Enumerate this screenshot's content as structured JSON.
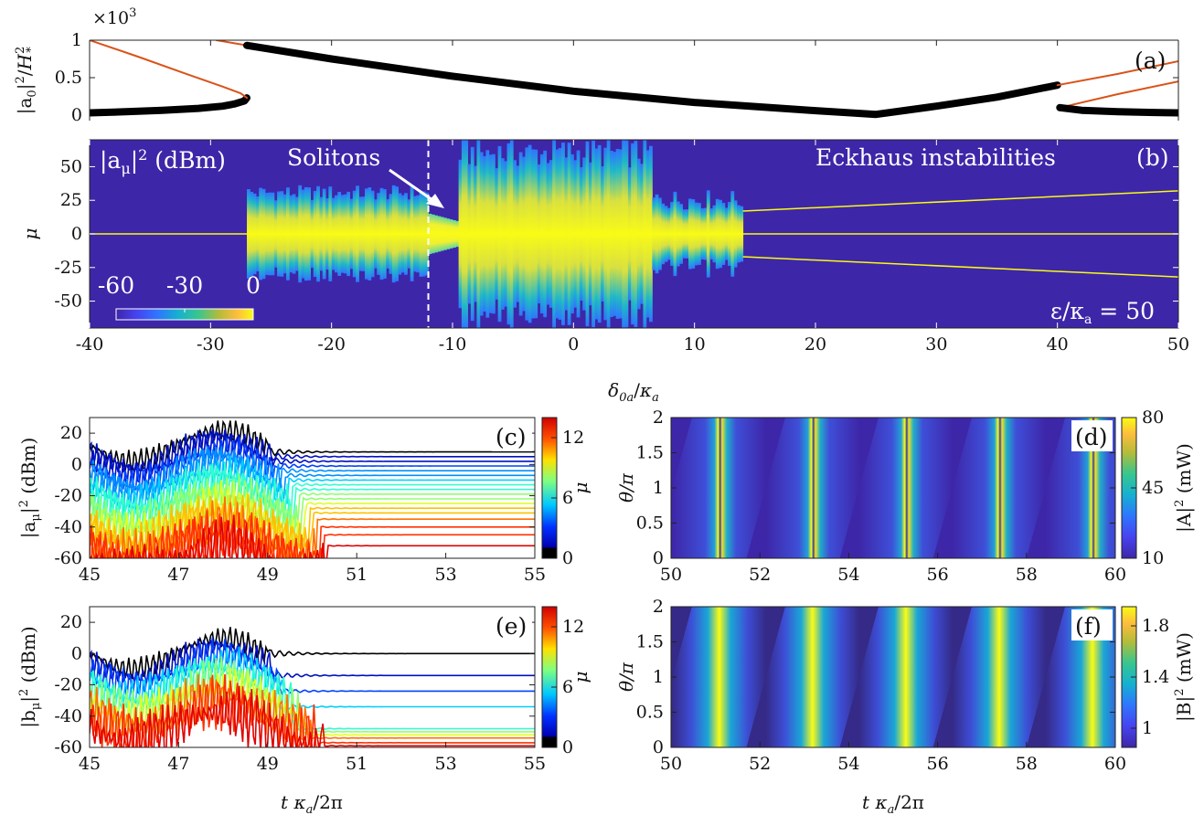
{
  "chart_data": [
    {
      "id": "a",
      "type": "line",
      "panel_label": "(a)",
      "ylabel": "|a0|²/H*²",
      "ylabel_parts": {
        "base": "|a",
        "sub": "0",
        "mid": "|",
        "sup": "2",
        "slash": "/",
        "script": "H",
        "sup2": "2",
        "sub2": "*"
      },
      "multiplier": "×10",
      "multiplier_exp": "3",
      "xlim": [
        -40,
        50
      ],
      "ylim": [
        0,
        1
      ],
      "ytick_labels": [
        "0",
        "0.5",
        "1"
      ],
      "ytick_values": [
        0,
        0.5,
        1
      ],
      "series": [
        {
          "style": "thick",
          "color": "#000000",
          "x": [
            -40,
            -37,
            -34,
            -31,
            -29,
            -28,
            -27.2,
            -27
          ],
          "y": [
            0.03,
            0.045,
            0.065,
            0.09,
            0.12,
            0.15,
            0.19,
            0.23
          ]
        },
        {
          "style": "thin",
          "color": "#d95319",
          "x": [
            -40,
            -36,
            -32,
            -29,
            -27.5,
            -27
          ],
          "y": [
            1.0,
            0.78,
            0.55,
            0.38,
            0.29,
            0.23
          ]
        },
        {
          "style": "thin",
          "color": "#d95319",
          "x": [
            -29.5,
            -27
          ],
          "y": [
            1.0,
            0.93
          ]
        },
        {
          "style": "thick",
          "color": "#000000",
          "x": [
            -27,
            -20,
            -10,
            0,
            10,
            20,
            25,
            30,
            35,
            40
          ],
          "y": [
            0.93,
            0.75,
            0.52,
            0.32,
            0.17,
            0.06,
            0.01,
            0.12,
            0.24,
            0.4
          ]
        },
        {
          "style": "thin",
          "color": "#d95319",
          "x": [
            40,
            45,
            50
          ],
          "y": [
            0.4,
            0.55,
            0.72
          ]
        },
        {
          "style": "thin",
          "color": "#d95319",
          "x": [
            40.2,
            45,
            50
          ],
          "y": [
            0.1,
            0.28,
            0.45
          ]
        },
        {
          "style": "thick",
          "color": "#000000",
          "x": [
            40.2,
            42,
            45,
            48,
            50
          ],
          "y": [
            0.1,
            0.065,
            0.045,
            0.035,
            0.03
          ]
        }
      ]
    },
    {
      "id": "b",
      "type": "heatmap",
      "panel_label": "(b)",
      "xlabel": "δ0a/κa",
      "xlabel_parts": {
        "base": "δ",
        "sub": "0a",
        "slash": "/",
        "base2": "κ",
        "sub2": "a"
      },
      "ylabel": "μ",
      "xlim": [
        -40,
        50
      ],
      "ylim": [
        -70,
        70
      ],
      "xtick_labels": [
        "-40",
        "-30",
        "-20",
        "-10",
        "0",
        "10",
        "20",
        "30",
        "40",
        "50"
      ],
      "xtick_values": [
        -40,
        -30,
        -20,
        -10,
        0,
        10,
        20,
        30,
        40,
        50
      ],
      "ytick_labels": [
        "-50",
        "-25",
        "0",
        "25",
        "50"
      ],
      "ytick_values": [
        -50,
        -25,
        0,
        25,
        50
      ],
      "quantity": "|aμ|² (dBm)",
      "quantity_parts": {
        "base": "|a",
        "sub": "μ",
        "mid": "|",
        "sup": "2",
        "unit": " (dBm)"
      },
      "colorbar_ticks": [
        "-60",
        "-30",
        "0"
      ],
      "colorbar_range": [
        -60,
        0
      ],
      "annotations": {
        "solitons": "Solitons",
        "eckhaus": "Eckhaus instabilities"
      },
      "epsilon_label": "ε/κa = 50",
      "epsilon_parts": {
        "base": "ε/κ",
        "sub": "a",
        "rest": " = 50"
      },
      "dashed_line_x": -12,
      "regions": [
        {
          "from": -27,
          "to": -12,
          "mu_extent": 33,
          "state": "chaotic"
        },
        {
          "from": -12,
          "to": -9.5,
          "mu_extent": 15,
          "state": "soliton"
        },
        {
          "from": -9.5,
          "to": 6.5,
          "mu_extent": 65,
          "state": "chaotic"
        },
        {
          "from": 6.5,
          "to": 14,
          "mu_extent": 30,
          "state": "breathing"
        }
      ],
      "sideband_lines": [
        {
          "x": [
            14,
            50
          ],
          "mu": [
            17,
            32
          ]
        },
        {
          "x": [
            14,
            50
          ],
          "mu": [
            -17,
            -32
          ]
        }
      ]
    },
    {
      "id": "c",
      "type": "line",
      "panel_label": "(c)",
      "ylabel": "|aμ|² (dBm)",
      "ylabel_parts": {
        "base": "|a",
        "sub": "μ",
        "mid": "|",
        "sup": "2",
        "unit": " (dBm)"
      },
      "xlim": [
        45,
        55
      ],
      "ylim": [
        -60,
        30
      ],
      "xtick_labels": [
        "45",
        "47",
        "49",
        "51",
        "53",
        "55"
      ],
      "xtick_values": [
        45,
        47,
        49,
        51,
        53,
        55
      ],
      "ytick_labels": [
        "-60",
        "-40",
        "-20",
        "0",
        "20"
      ],
      "ytick_values": [
        -60,
        -40,
        -20,
        0,
        20
      ],
      "colorbar_label": "μ",
      "colorbar_ticks": [
        "0",
        "6",
        "12"
      ],
      "colorbar_range": [
        0,
        14
      ],
      "mode_levels": [
        8,
        5,
        2,
        -1,
        -4,
        -7,
        -10,
        -13,
        -16,
        -19,
        -22,
        -25,
        -28,
        -31,
        -35,
        -40,
        -45,
        -52
      ],
      "settle_time": 49,
      "onset_time": 45
    },
    {
      "id": "d",
      "type": "heatmap",
      "panel_label": "(d)",
      "ylabel": "θ/π",
      "xlim": [
        50,
        60
      ],
      "ylim": [
        0,
        2
      ],
      "xtick_labels": [
        "50",
        "52",
        "54",
        "56",
        "58",
        "60"
      ],
      "xtick_values": [
        50,
        52,
        54,
        56,
        58,
        60
      ],
      "ytick_labels": [
        "0",
        "0.5",
        "1",
        "1.5",
        "2"
      ],
      "ytick_values": [
        0,
        0.5,
        1,
        1.5,
        2
      ],
      "colorbar_label": "|A|² (mW)",
      "colorbar_label_parts": {
        "base": "|A|",
        "sup": "2",
        "unit": " (mW)"
      },
      "colorbar_ticks": [
        "10",
        "45",
        "80"
      ],
      "colorbar_range": [
        10,
        80
      ],
      "stripe_period": 2.1,
      "stripe_slope": 2.3,
      "stripe_offset": -1.45
    },
    {
      "id": "e",
      "type": "line",
      "panel_label": "(e)",
      "ylabel": "|bμ|² (dBm)",
      "ylabel_parts": {
        "base": "|b",
        "sub": "μ",
        "mid": "|",
        "sup": "2",
        "unit": " (dBm)"
      },
      "xlabel": "t κa/2π",
      "xlabel_parts": {
        "base": "t κ",
        "sub": "a",
        "rest": "/2π"
      },
      "xlim": [
        45,
        55
      ],
      "ylim": [
        -60,
        30
      ],
      "xtick_labels": [
        "45",
        "47",
        "49",
        "51",
        "53",
        "55"
      ],
      "xtick_values": [
        45,
        47,
        49,
        51,
        53,
        55
      ],
      "ytick_labels": [
        "-60",
        "-40",
        "-20",
        "0",
        "20"
      ],
      "ytick_values": [
        -60,
        -40,
        -20,
        0,
        20
      ],
      "colorbar_label": "μ",
      "colorbar_ticks": [
        "0",
        "6",
        "12"
      ],
      "colorbar_range": [
        0,
        14
      ],
      "mode_levels": [
        0,
        -14,
        -24,
        -34,
        -48,
        -50,
        -52,
        -54,
        -57,
        -59
      ],
      "settle_time": 49,
      "onset_time": 45
    },
    {
      "id": "f",
      "type": "heatmap",
      "panel_label": "(f)",
      "ylabel": "θ/π",
      "xlabel": "t κa/2π",
      "xlabel_parts": {
        "base": "t κ",
        "sub": "a",
        "rest": "/2π"
      },
      "xlim": [
        50,
        60
      ],
      "ylim": [
        0,
        2
      ],
      "xtick_labels": [
        "50",
        "52",
        "54",
        "56",
        "58",
        "60"
      ],
      "xtick_values": [
        50,
        52,
        54,
        56,
        58,
        60
      ],
      "ytick_labels": [
        "0",
        "0.5",
        "1",
        "1.5",
        "2"
      ],
      "ytick_values": [
        0,
        0.5,
        1,
        1.5,
        2
      ],
      "colorbar_label": "|B|² (mW)",
      "colorbar_label_parts": {
        "base": "|B|",
        "sup": "2",
        "unit": " (mW)"
      },
      "colorbar_ticks": [
        "1",
        "1.4",
        "1.8"
      ],
      "colorbar_range": [
        0.85,
        1.95
      ],
      "stripe_period": 2.1,
      "stripe_slope": 2.3,
      "stripe_offset": -1.45
    }
  ],
  "colors": {
    "parula_low": "#3e26a8",
    "parula_high": "#f9fb15",
    "orange": "#d95319",
    "black": "#000000",
    "white": "#ffffff"
  }
}
